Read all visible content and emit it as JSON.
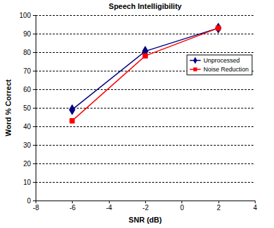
{
  "chart_data": {
    "type": "line",
    "title": "Speech Intelligibility",
    "x_label": "SNR (dB)",
    "y_label": "Word % Correct",
    "x": [
      -6,
      -2,
      2
    ],
    "series": [
      {
        "name": "Unprocessed",
        "color": "#000080",
        "marker": "diamond",
        "line_style": "solid",
        "values": [
          49,
          80.5,
          93
        ]
      },
      {
        "name": "Noise Reduction",
        "color": "#ff0000",
        "marker": "square",
        "line_style": "solid",
        "values": [
          43,
          78,
          93
        ]
      }
    ],
    "xlim": [
      -8,
      4
    ],
    "xticks": [
      -8,
      -6,
      -4,
      -2,
      0,
      2,
      4
    ],
    "ylim": [
      0,
      100
    ],
    "yticks": [
      0,
      10,
      20,
      30,
      40,
      50,
      60,
      70,
      80,
      90,
      100
    ],
    "grid": true,
    "legend": "right"
  }
}
